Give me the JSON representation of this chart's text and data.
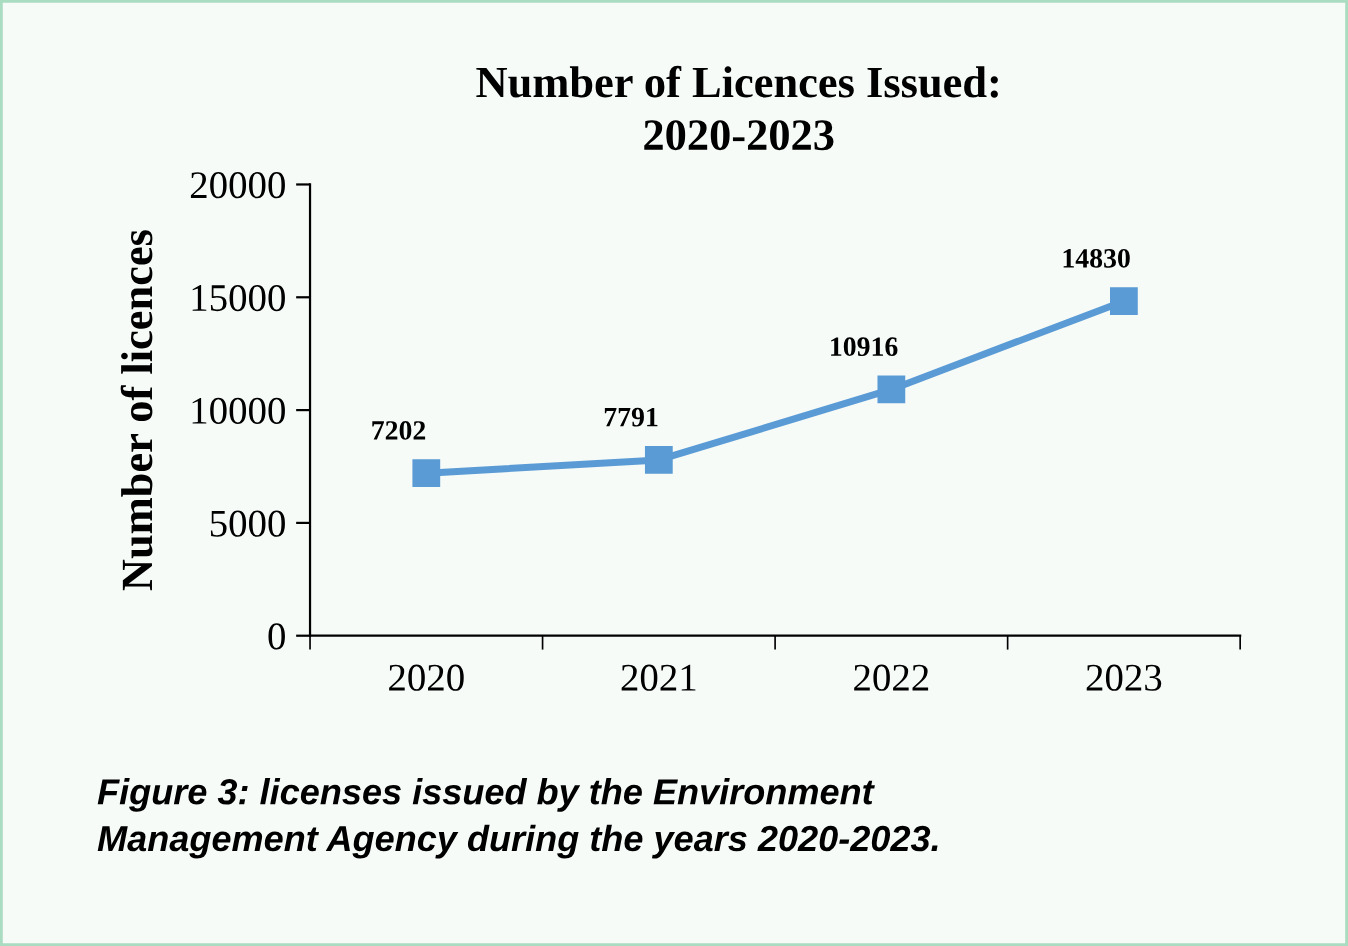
{
  "chart_data": {
    "type": "line",
    "title": "Number of Licences Issued:\n2020-2023",
    "ylabel": "Number of licences",
    "categories": [
      "2020",
      "2021",
      "2022",
      "2023"
    ],
    "series": [
      {
        "color": "#5b9bd5",
        "values": [
          7202,
          7791,
          10916,
          14830
        ]
      }
    ],
    "ylim": [
      0,
      20000
    ],
    "yticks": [
      0,
      5000,
      10000,
      15000,
      20000
    ],
    "grid": false,
    "legend": false,
    "marker": "square",
    "line_style": "solid",
    "data_labels": true,
    "annotations": [
      "Figure 3: licenses issued by the Environment\nManagement Agency during the years 2020-2023."
    ]
  }
}
